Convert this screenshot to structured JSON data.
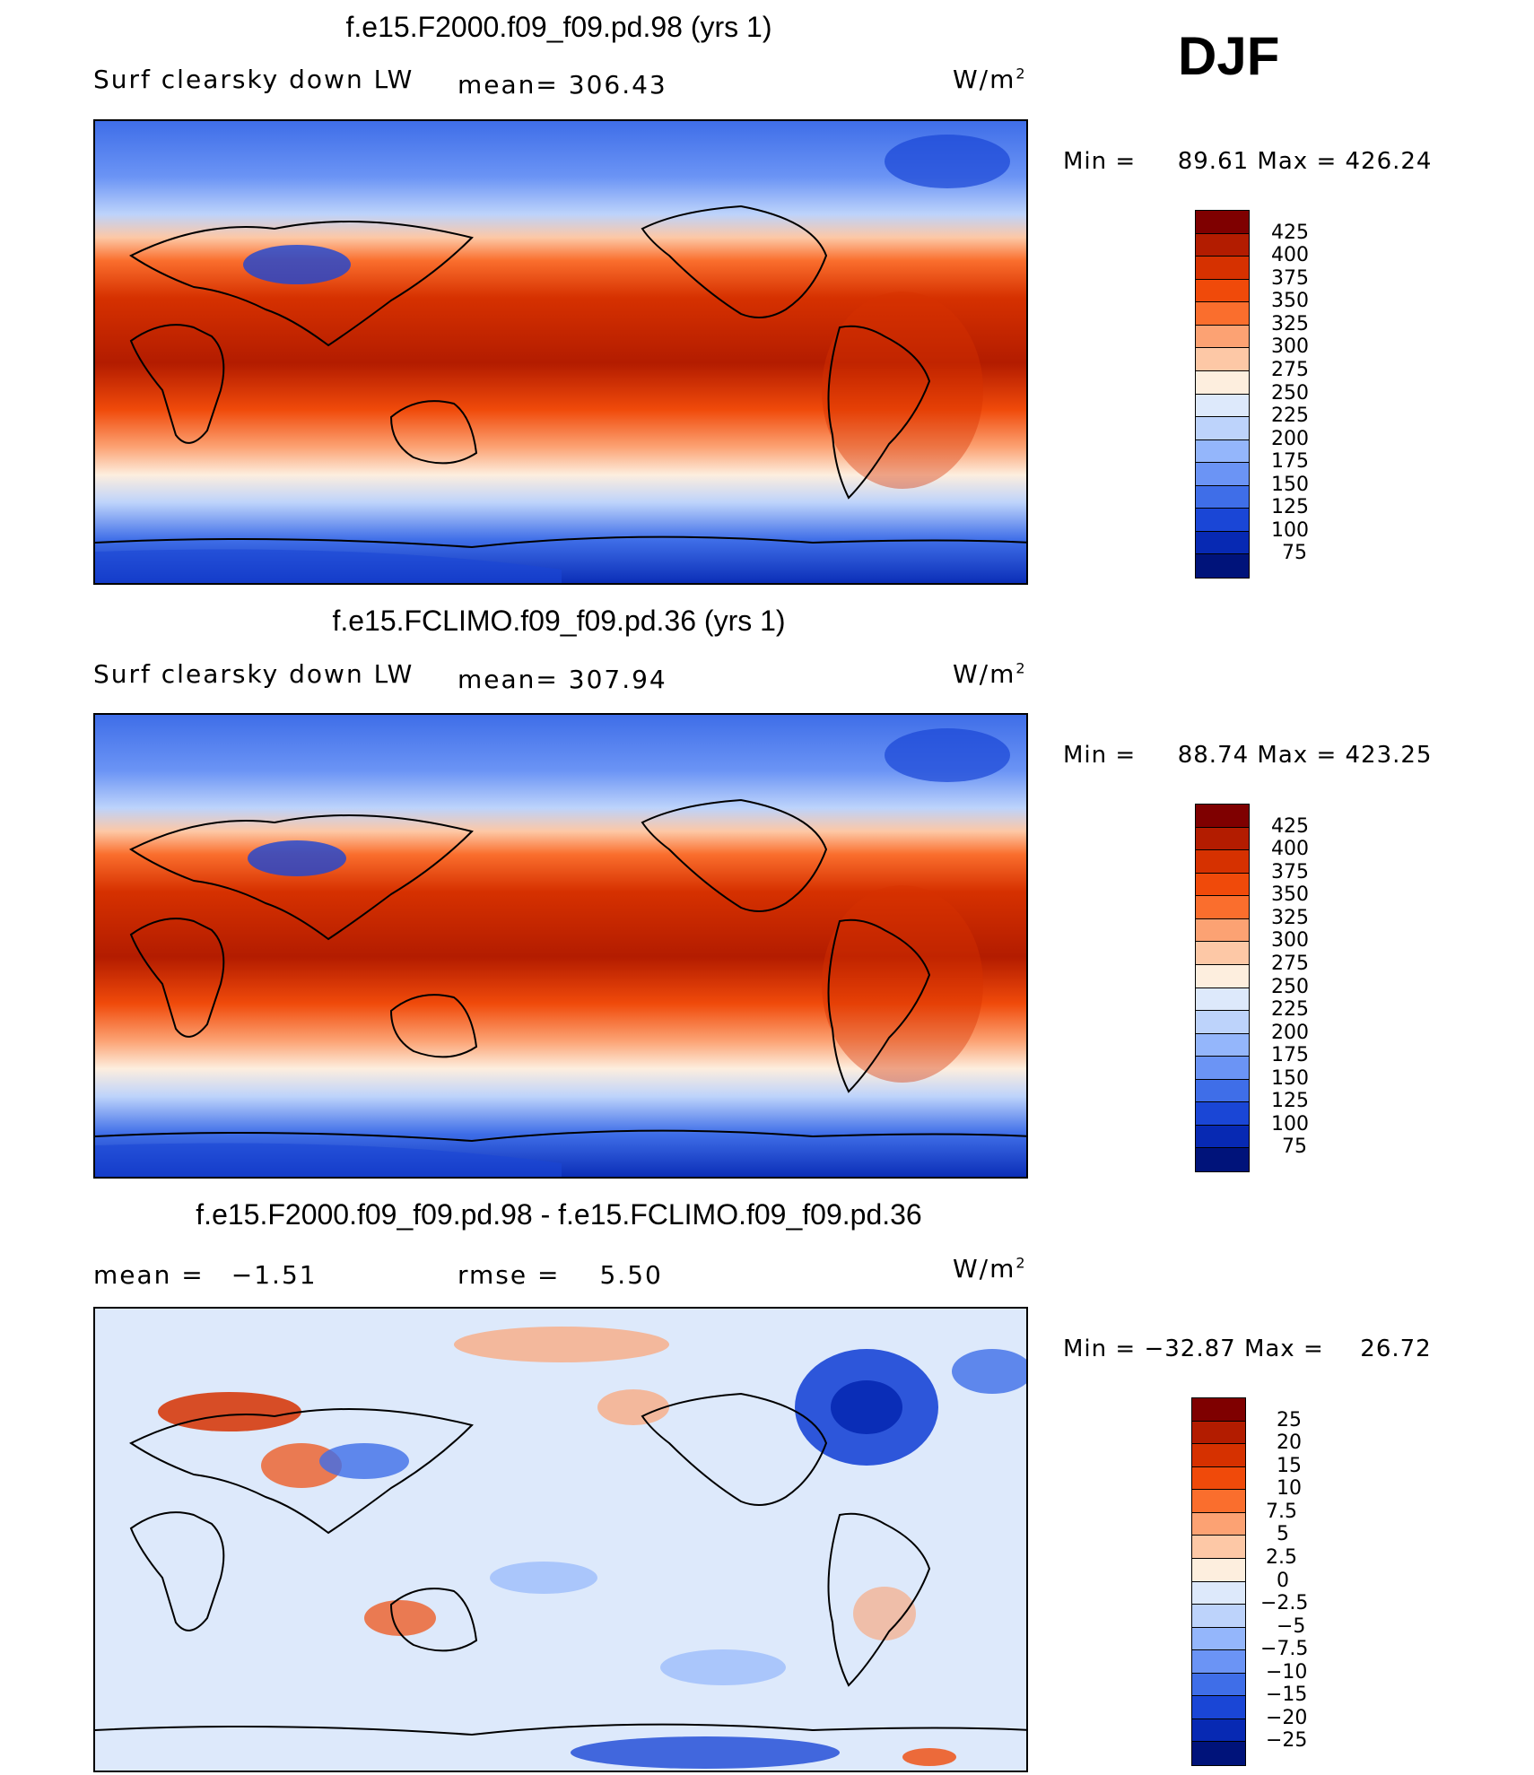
{
  "season": "DJF",
  "units": "W/m",
  "units_sup": "2",
  "panels": [
    {
      "title": "f.e15.F2000.f09_f09.pd.98 (yrs 1)",
      "left_label": "Surf clearsky down LW",
      "stat_label": "mean= 306.43",
      "min_label": "Min =",
      "min_value": "89.61",
      "max_label": "Max =",
      "max_value": "426.24"
    },
    {
      "title": "f.e15.FCLIMO.f09_f09.pd.36 (yrs 1)",
      "left_label": "Surf clearsky down LW",
      "stat_label": "mean= 307.94",
      "min_label": "Min =",
      "min_value": "88.74",
      "max_label": "Max =",
      "max_value": "423.25"
    },
    {
      "title": "f.e15.F2000.f09_f09.pd.98 - f.e15.FCLIMO.f09_f09.pd.36",
      "left_label": "mean =",
      "left_value": "−1.51",
      "stat_label": "rmse =",
      "stat_value": "5.50",
      "min_label": "Min =",
      "min_value": "−32.87",
      "max_label": "Max =",
      "max_value": "26.72"
    }
  ],
  "colorbars": {
    "absolute": {
      "labels": [
        "425",
        "400",
        "375",
        "350",
        "325",
        "300",
        "275",
        "250",
        "225",
        "200",
        "175",
        "150",
        "125",
        "100",
        "75"
      ],
      "colors": [
        "#7f0000",
        "#b31c00",
        "#d63100",
        "#f04a0a",
        "#fa6e2d",
        "#fca273",
        "#fdc8a6",
        "#fdeede",
        "#dde9fb",
        "#bdd3fb",
        "#94b6fb",
        "#6b94f5",
        "#3f6ee8",
        "#1a46d6",
        "#0729b3",
        "#00137a"
      ]
    },
    "difference": {
      "labels": [
        "25",
        "20",
        "15",
        "10",
        "7.5",
        "5",
        "2.5",
        "0",
        "−2.5",
        "−5",
        "−7.5",
        "−10",
        "−15",
        "−20",
        "−25"
      ],
      "colors": [
        "#7f0000",
        "#b31c00",
        "#d63100",
        "#f04a0a",
        "#fa6e2d",
        "#fca273",
        "#fdc8a6",
        "#fdeede",
        "#dde9fb",
        "#bdd3fb",
        "#94b6fb",
        "#6b94f5",
        "#3f6ee8",
        "#1a46d6",
        "#0729b3",
        "#00137a"
      ]
    }
  },
  "chart_data": [
    {
      "type": "heatmap",
      "title": "f.e15.F2000.f09_f09.pd.98 (yrs 1)",
      "variable": "Surf clearsky down LW",
      "units": "W/m2",
      "season": "DJF",
      "mean": 306.43,
      "min": 89.61,
      "max": 426.24,
      "contour_levels": [
        75,
        100,
        125,
        150,
        175,
        200,
        225,
        250,
        275,
        300,
        325,
        350,
        375,
        400,
        425
      ],
      "zonal_bands_approx": [
        {
          "lat": 80,
          "value": 150
        },
        {
          "lat": 60,
          "value": 200
        },
        {
          "lat": 40,
          "value": 270
        },
        {
          "lat": 20,
          "value": 360
        },
        {
          "lat": 0,
          "value": 405
        },
        {
          "lat": -20,
          "value": 385
        },
        {
          "lat": -40,
          "value": 300
        },
        {
          "lat": -55,
          "value": 245
        },
        {
          "lat": -75,
          "value": 140
        }
      ]
    },
    {
      "type": "heatmap",
      "title": "f.e15.FCLIMO.f09_f09.pd.36 (yrs 1)",
      "variable": "Surf clearsky down LW",
      "units": "W/m2",
      "season": "DJF",
      "mean": 307.94,
      "min": 88.74,
      "max": 423.25,
      "contour_levels": [
        75,
        100,
        125,
        150,
        175,
        200,
        225,
        250,
        275,
        300,
        325,
        350,
        375,
        400,
        425
      ],
      "zonal_bands_approx": [
        {
          "lat": 80,
          "value": 150
        },
        {
          "lat": 60,
          "value": 205
        },
        {
          "lat": 40,
          "value": 275
        },
        {
          "lat": 20,
          "value": 360
        },
        {
          "lat": 0,
          "value": 405
        },
        {
          "lat": -20,
          "value": 385
        },
        {
          "lat": -40,
          "value": 300
        },
        {
          "lat": -55,
          "value": 245
        },
        {
          "lat": -75,
          "value": 140
        }
      ]
    },
    {
      "type": "heatmap",
      "title": "f.e15.F2000.f09_f09.pd.98 - f.e15.FCLIMO.f09_f09.pd.36",
      "units": "W/m2",
      "season": "DJF",
      "mean": -1.51,
      "rmse": 5.5,
      "min": -32.87,
      "max": 26.72,
      "contour_levels": [
        -25,
        -20,
        -15,
        -10,
        -7.5,
        -5,
        -2.5,
        0,
        2.5,
        5,
        7.5,
        10,
        15,
        20,
        25
      ]
    }
  ]
}
